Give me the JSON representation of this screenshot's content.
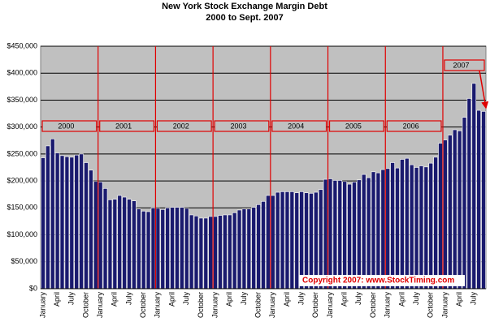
{
  "chart_data": {
    "type": "bar",
    "title": "New York Stock Exchange Margin Debt",
    "subtitle": "2000 to Sept. 2007",
    "annotation": "Copyright 2007: www.StockTiming.com",
    "year_labels": [
      "2000",
      "2001",
      "2002",
      "2003",
      "2004",
      "2005",
      "2006",
      "2007"
    ],
    "color": "#1a1a6e",
    "categories": [
      "January",
      null,
      null,
      "April",
      null,
      null,
      "July",
      null,
      null,
      "October",
      null,
      null,
      "January",
      null,
      null,
      "April",
      null,
      null,
      "July",
      null,
      null,
      "October",
      null,
      null,
      "January",
      null,
      null,
      "April",
      null,
      null,
      "July",
      null,
      null,
      "October",
      null,
      null,
      "January",
      null,
      null,
      "April",
      null,
      null,
      "July",
      null,
      null,
      "October",
      null,
      null,
      "January",
      null,
      null,
      "April",
      null,
      null,
      "July",
      null,
      null,
      "October",
      null,
      null,
      "January",
      null,
      null,
      "April",
      null,
      null,
      "July",
      null,
      null,
      "October",
      null,
      null,
      "January",
      null,
      null,
      "April",
      null,
      null,
      "July",
      null,
      null,
      "October",
      null,
      null,
      "January",
      null,
      null,
      "April",
      null,
      null,
      "July",
      null,
      null
    ],
    "values": [
      243000,
      265000,
      278000,
      252000,
      247000,
      245000,
      244000,
      248000,
      250000,
      234000,
      220000,
      199000,
      198000,
      186000,
      165000,
      166000,
      173000,
      170000,
      166000,
      163000,
      148000,
      144000,
      143000,
      150000,
      149000,
      147000,
      150000,
      151000,
      151000,
      151000,
      149000,
      137000,
      135000,
      131000,
      131000,
      134000,
      134000,
      136000,
      137000,
      137000,
      141000,
      146000,
      148000,
      148000,
      151000,
      156000,
      162000,
      173000,
      173000,
      179000,
      180000,
      180000,
      180000,
      178000,
      180000,
      178000,
      177000,
      179000,
      184000,
      203000,
      204000,
      201000,
      201000,
      199000,
      194000,
      198000,
      202000,
      212000,
      206000,
      217000,
      215000,
      221000,
      223000,
      234000,
      224000,
      240000,
      242000,
      230000,
      225000,
      228000,
      226000,
      233000,
      244000,
      270000,
      276000,
      285000,
      295000,
      293000,
      318000,
      353000,
      381000,
      331000,
      329000
    ],
    "ylim": [
      0,
      450000
    ],
    "yticks": [
      {
        "value": 0,
        "label": "$0"
      },
      {
        "value": 50000,
        "label": "$50,000"
      },
      {
        "value": 100000,
        "label": "$100,000"
      },
      {
        "value": 150000,
        "label": "$150,000"
      },
      {
        "value": 200000,
        "label": "$200,000"
      },
      {
        "value": 250000,
        "label": "$250,000"
      },
      {
        "value": 300000,
        "label": "$300,000"
      },
      {
        "value": 350000,
        "label": "$350,000"
      },
      {
        "value": 400000,
        "label": "$400,000"
      },
      {
        "value": 450000,
        "label": "$450,000"
      }
    ],
    "grid": true
  }
}
